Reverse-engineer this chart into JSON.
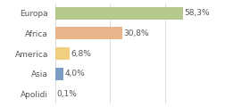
{
  "categories": [
    "Europa",
    "Africa",
    "America",
    "Asia",
    "Apolidi"
  ],
  "values": [
    58.3,
    30.8,
    6.8,
    4.0,
    0.1
  ],
  "labels": [
    "58,3%",
    "30,8%",
    "6,8%",
    "4,0%",
    "0,1%"
  ],
  "bar_colors": [
    "#b5c98e",
    "#e8b48a",
    "#f0d080",
    "#7b9dc4",
    "#c8c8c8"
  ],
  "background_color": "#ffffff",
  "xlim": [
    0,
    75
  ],
  "bar_height": 0.62,
  "label_fontsize": 6.5,
  "tick_fontsize": 6.5,
  "grid_color": "#cccccc",
  "text_color": "#555555"
}
